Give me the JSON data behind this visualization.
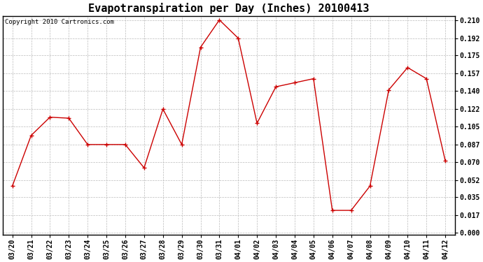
{
  "title": "Evapotranspiration per Day (Inches) 20100413",
  "copyright": "Copyright 2010 Cartronics.com",
  "x_labels": [
    "03/20",
    "03/21",
    "03/22",
    "03/23",
    "03/24",
    "03/25",
    "03/26",
    "03/27",
    "03/28",
    "03/29",
    "03/30",
    "03/31",
    "04/01",
    "04/02",
    "04/03",
    "04/04",
    "04/05",
    "04/06",
    "04/07",
    "04/08",
    "04/09",
    "04/10",
    "04/11",
    "04/12"
  ],
  "y_values": [
    0.046,
    0.096,
    0.114,
    0.113,
    0.087,
    0.087,
    0.087,
    0.064,
    0.122,
    0.087,
    0.183,
    0.21,
    0.192,
    0.108,
    0.144,
    0.148,
    0.152,
    0.022,
    0.022,
    0.046,
    0.141,
    0.163,
    0.152,
    0.071
  ],
  "y_ticks": [
    0.0,
    0.017,
    0.035,
    0.052,
    0.07,
    0.087,
    0.105,
    0.122,
    0.14,
    0.157,
    0.175,
    0.192,
    0.21
  ],
  "line_color": "#cc0000",
  "marker": "+",
  "marker_size": 5,
  "marker_linewidth": 1.0,
  "bg_color": "#ffffff",
  "plot_bg_color": "#ffffff",
  "grid_color": "#bbbbbb",
  "title_fontsize": 11,
  "copyright_fontsize": 6.5,
  "tick_fontsize": 7,
  "ylim_min": -0.002,
  "ylim_max": 0.214
}
